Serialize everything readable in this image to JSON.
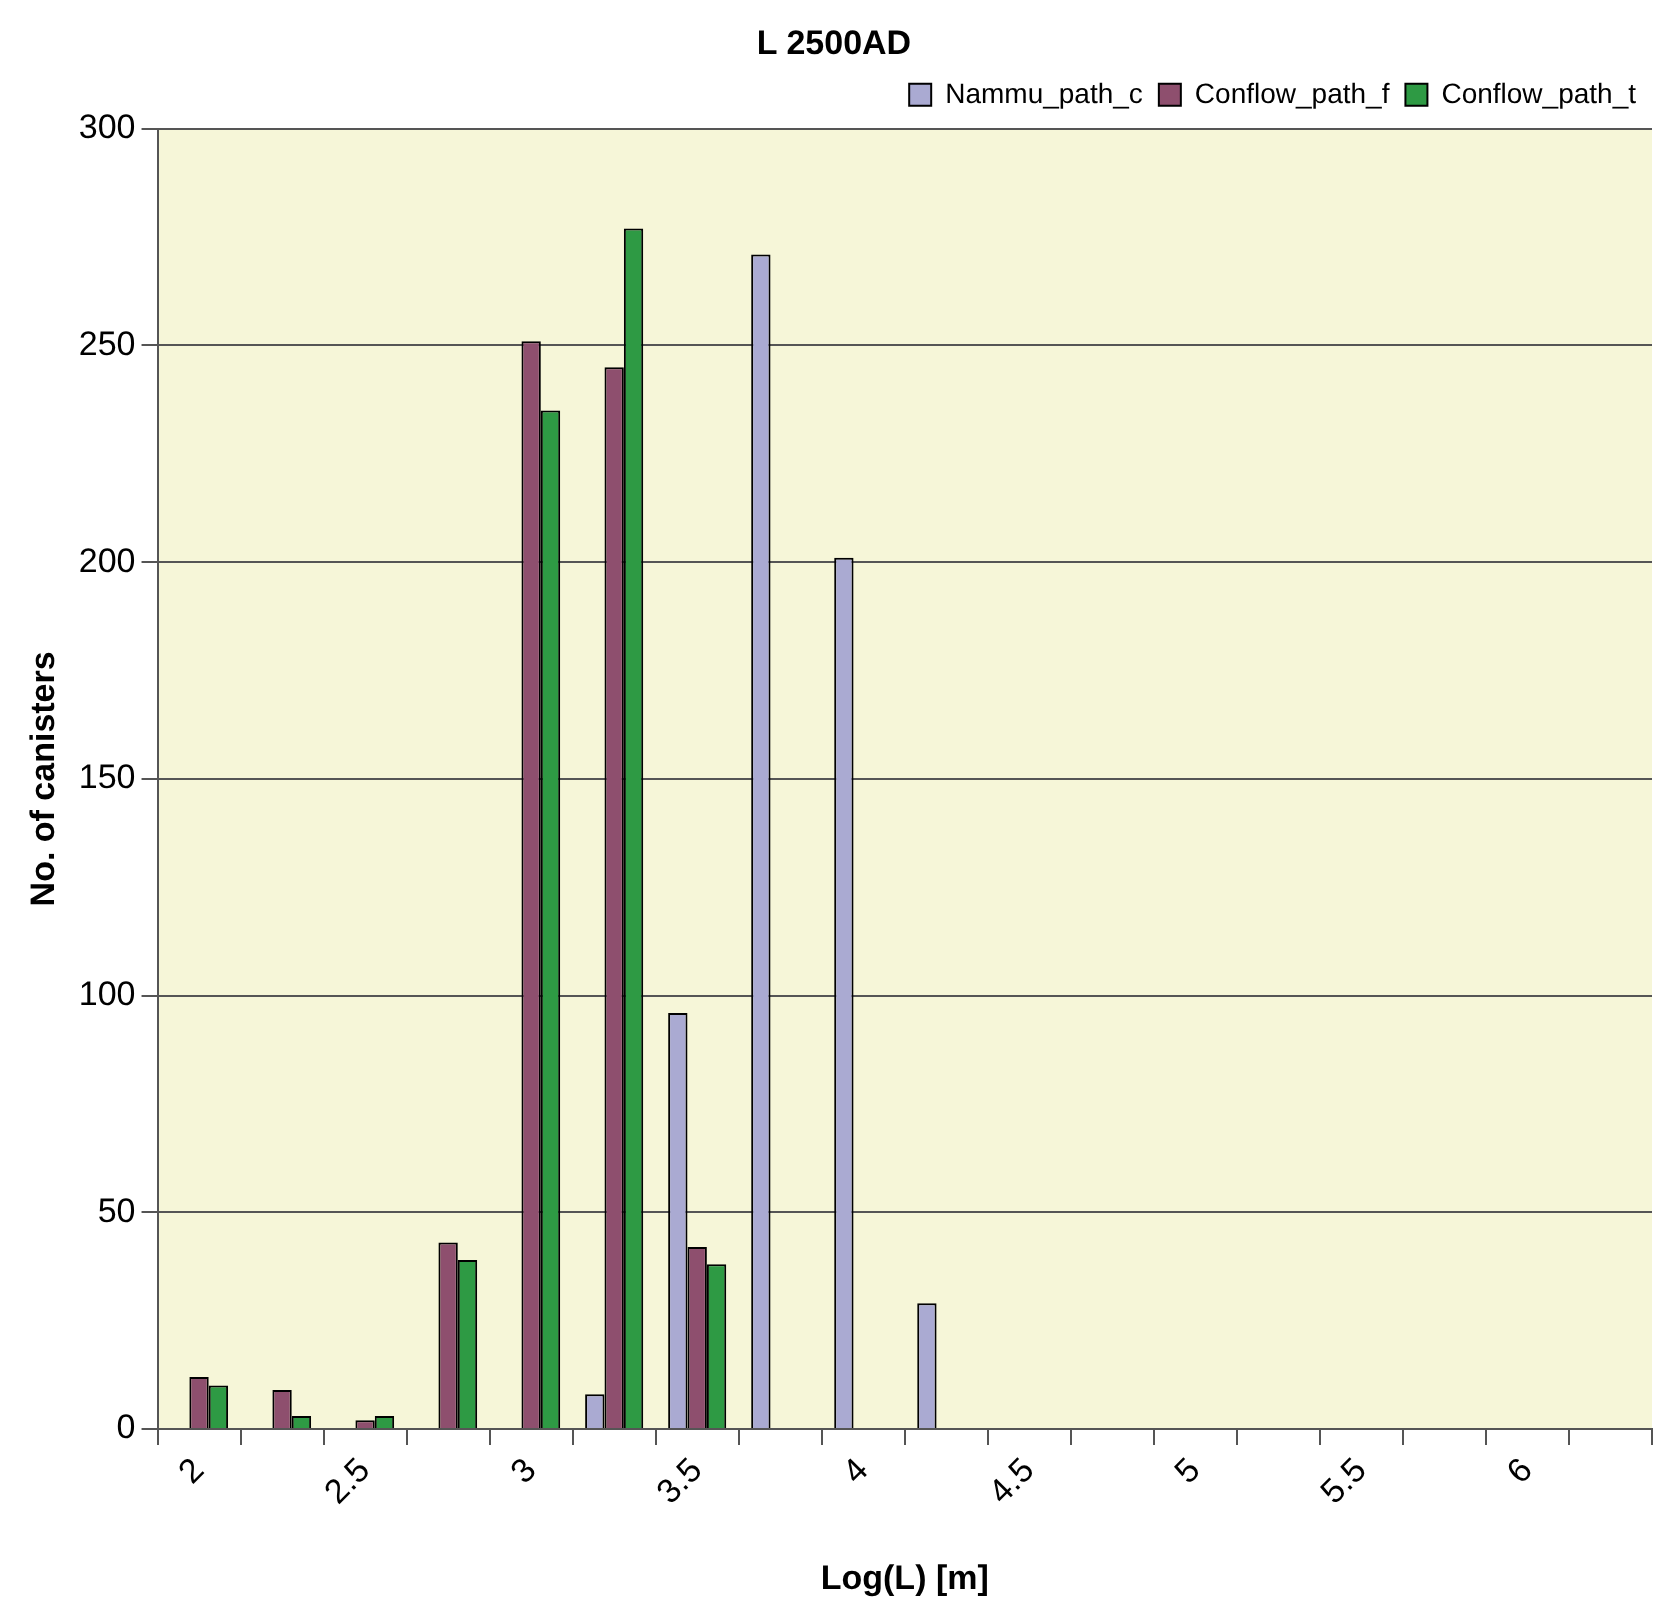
{
  "chart_data": {
    "type": "bar",
    "title": "L 2500AD",
    "xlabel": "Log(L) [m]",
    "ylabel": "No. of canisters",
    "categories": [
      "2",
      null,
      "2.5",
      null,
      "3",
      null,
      "3.5",
      null,
      "4",
      null,
      "4.5",
      null,
      "5",
      null,
      "5.5",
      null,
      "6",
      null
    ],
    "series": [
      {
        "name": "Nammu_path_c",
        "color": "#aaaad2",
        "values": [
          0,
          0,
          0,
          0,
          0,
          8,
          96,
          271,
          201,
          29,
          0,
          0,
          0,
          0,
          0,
          0,
          0,
          0
        ]
      },
      {
        "name": "Conflow_path_f",
        "color": "#8e4f6e",
        "values": [
          12,
          9,
          2,
          43,
          251,
          245,
          42,
          0,
          0,
          0,
          0,
          0,
          0,
          0,
          0,
          0,
          0,
          0
        ]
      },
      {
        "name": "Conflow_path_t",
        "color": "#2e9a44",
        "values": [
          10,
          3,
          3,
          39,
          235,
          277,
          38,
          0,
          0,
          0,
          0,
          0,
          0,
          0,
          0,
          0,
          0,
          0
        ]
      }
    ],
    "ylim": [
      0,
      300
    ],
    "yticks": [
      0,
      50,
      100,
      150,
      200,
      250,
      300
    ],
    "grid": "y",
    "legend": "top right"
  }
}
